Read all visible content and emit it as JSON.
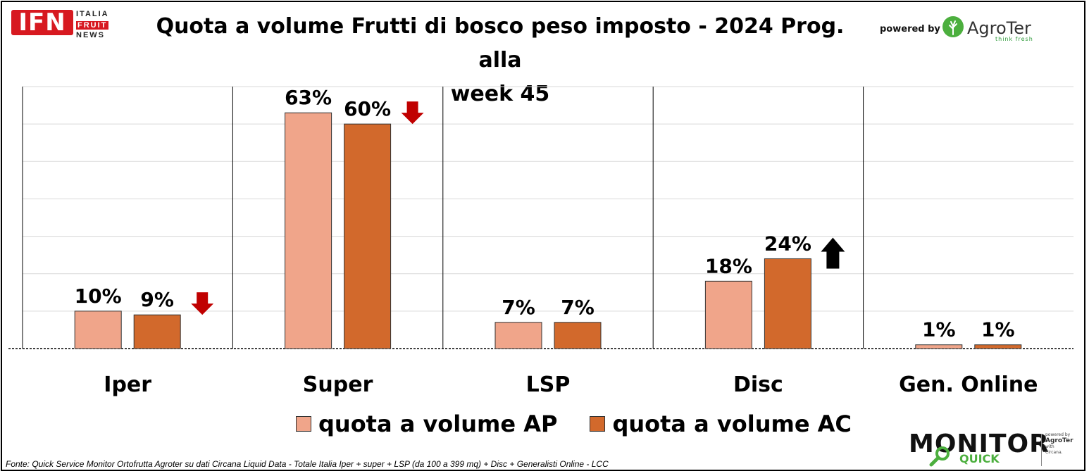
{
  "header": {
    "title_line1": "Quota a volume Frutti di bosco peso imposto - 2024 Prog. alla",
    "title_line2": "week 45",
    "powered_by": "powered by",
    "ifn_logo": {
      "abbr": "IFN",
      "line1": "ITALIA",
      "line2": "FRUIT",
      "line3": "NEWS"
    },
    "agroter_logo": {
      "name": "AgroTer",
      "tagline": "think fresh"
    }
  },
  "chart_data": {
    "type": "bar",
    "categories": [
      "Iper",
      "Super",
      "LSP",
      "Disc",
      "Gen. Online"
    ],
    "series": [
      {
        "name": "quota a volume AP",
        "values": [
          10,
          63,
          7,
          18,
          1
        ],
        "labels": [
          "10%",
          "63%",
          "7%",
          "18%",
          "1%"
        ],
        "color": "#f0a58a"
      },
      {
        "name": "quota a volume AC",
        "values": [
          9,
          60,
          7,
          24,
          1
        ],
        "labels": [
          "9%",
          "60%",
          "7%",
          "24%",
          "1%"
        ],
        "color": "#d2692c"
      }
    ],
    "trend_arrows": [
      "down",
      "down",
      "none",
      "up",
      "none"
    ],
    "arrow_colors": {
      "down": "#c00000",
      "up": "#000000"
    },
    "ylim": [
      0,
      70
    ],
    "grid": true,
    "legend_position": "bottom"
  },
  "footer": {
    "source": "Fonte: Quick Service Monitor Ortofrutta Agroter su dati Circana Liquid Data - Totale Italia Iper + super + LSP (da 100 a 399 mq) + Disc + Generalisti Online - LCC",
    "monitor_logo": {
      "word": "MONITOR",
      "sub": "QUICK",
      "powered": "powered by",
      "brand": "AgroTer",
      "with": "with",
      "partner": "Circana."
    }
  }
}
